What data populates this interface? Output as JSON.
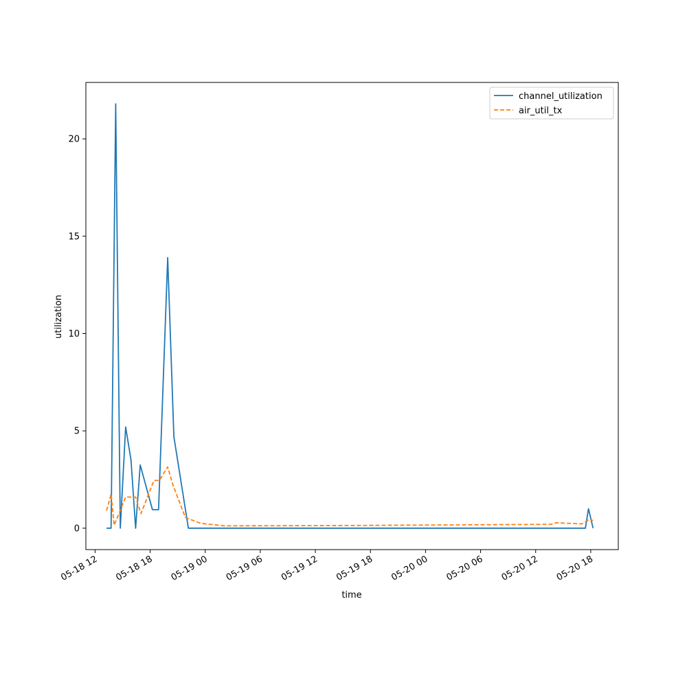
{
  "chart_data": {
    "type": "line",
    "xlabel": "time",
    "ylabel": "utilization",
    "x_type": "datetime",
    "xlim": [
      "2025-05-18T11:00",
      "2025-05-20T21:00"
    ],
    "ylim": [
      -1.1,
      22.9
    ],
    "xticks": [
      {
        "value": "2025-05-18T12:00",
        "label": "05-18 12"
      },
      {
        "value": "2025-05-18T18:00",
        "label": "05-18 18"
      },
      {
        "value": "2025-05-19T00:00",
        "label": "05-19 00"
      },
      {
        "value": "2025-05-19T06:00",
        "label": "05-19 06"
      },
      {
        "value": "2025-05-19T12:00",
        "label": "05-19 12"
      },
      {
        "value": "2025-05-19T18:00",
        "label": "05-19 18"
      },
      {
        "value": "2025-05-20T00:00",
        "label": "05-20 00"
      },
      {
        "value": "2025-05-20T06:00",
        "label": "05-20 06"
      },
      {
        "value": "2025-05-20T12:00",
        "label": "05-20 12"
      },
      {
        "value": "2025-05-20T18:00",
        "label": "05-20 18"
      }
    ],
    "yticks": [
      {
        "value": 0,
        "label": "0"
      },
      {
        "value": 5,
        "label": "5"
      },
      {
        "value": 10,
        "label": "10"
      },
      {
        "value": 15,
        "label": "15"
      },
      {
        "value": 20,
        "label": "20"
      }
    ],
    "legend_position": "top-right",
    "grid": false,
    "series": [
      {
        "name": "channel_utilization",
        "color": "#1f77b4",
        "style": "solid",
        "points": [
          [
            "2025-05-18T13:15",
            0
          ],
          [
            "2025-05-18T13:45",
            0
          ],
          [
            "2025-05-18T14:15",
            21.8
          ],
          [
            "2025-05-18T14:45",
            0
          ],
          [
            "2025-05-18T15:20",
            5.2
          ],
          [
            "2025-05-18T15:55",
            3.5
          ],
          [
            "2025-05-18T16:25",
            0
          ],
          [
            "2025-05-18T16:55",
            3.25
          ],
          [
            "2025-05-18T18:15",
            0.95
          ],
          [
            "2025-05-18T18:55",
            0.95
          ],
          [
            "2025-05-18T19:55",
            13.9
          ],
          [
            "2025-05-18T20:35",
            4.7
          ],
          [
            "2025-05-18T22:10",
            0
          ],
          [
            "2025-05-20T17:25",
            0
          ],
          [
            "2025-05-20T17:45",
            1.0
          ],
          [
            "2025-05-20T18:15",
            0
          ]
        ]
      },
      {
        "name": "air_util_tx",
        "color": "#ff7f0e",
        "style": "dashed",
        "points": [
          [
            "2025-05-18T13:15",
            0.9
          ],
          [
            "2025-05-18T13:45",
            1.75
          ],
          [
            "2025-05-18T14:05",
            0.15
          ],
          [
            "2025-05-18T15:20",
            1.6
          ],
          [
            "2025-05-18T16:25",
            1.6
          ],
          [
            "2025-05-18T17:00",
            0.75
          ],
          [
            "2025-05-18T18:25",
            2.45
          ],
          [
            "2025-05-18T19:00",
            2.45
          ],
          [
            "2025-05-18T19:55",
            3.15
          ],
          [
            "2025-05-18T20:30",
            2.2
          ],
          [
            "2025-05-18T21:50",
            0.55
          ],
          [
            "2025-05-18T23:30",
            0.25
          ],
          [
            "2025-05-19T02:05",
            0.12
          ],
          [
            "2025-05-19T12:00",
            0.13
          ],
          [
            "2025-05-20T00:00",
            0.16
          ],
          [
            "2025-05-20T13:40",
            0.2
          ],
          [
            "2025-05-20T14:15",
            0.28
          ],
          [
            "2025-05-20T17:00",
            0.22
          ],
          [
            "2025-05-20T17:45",
            0.42
          ],
          [
            "2025-05-20T18:15",
            0.4
          ]
        ]
      }
    ]
  }
}
